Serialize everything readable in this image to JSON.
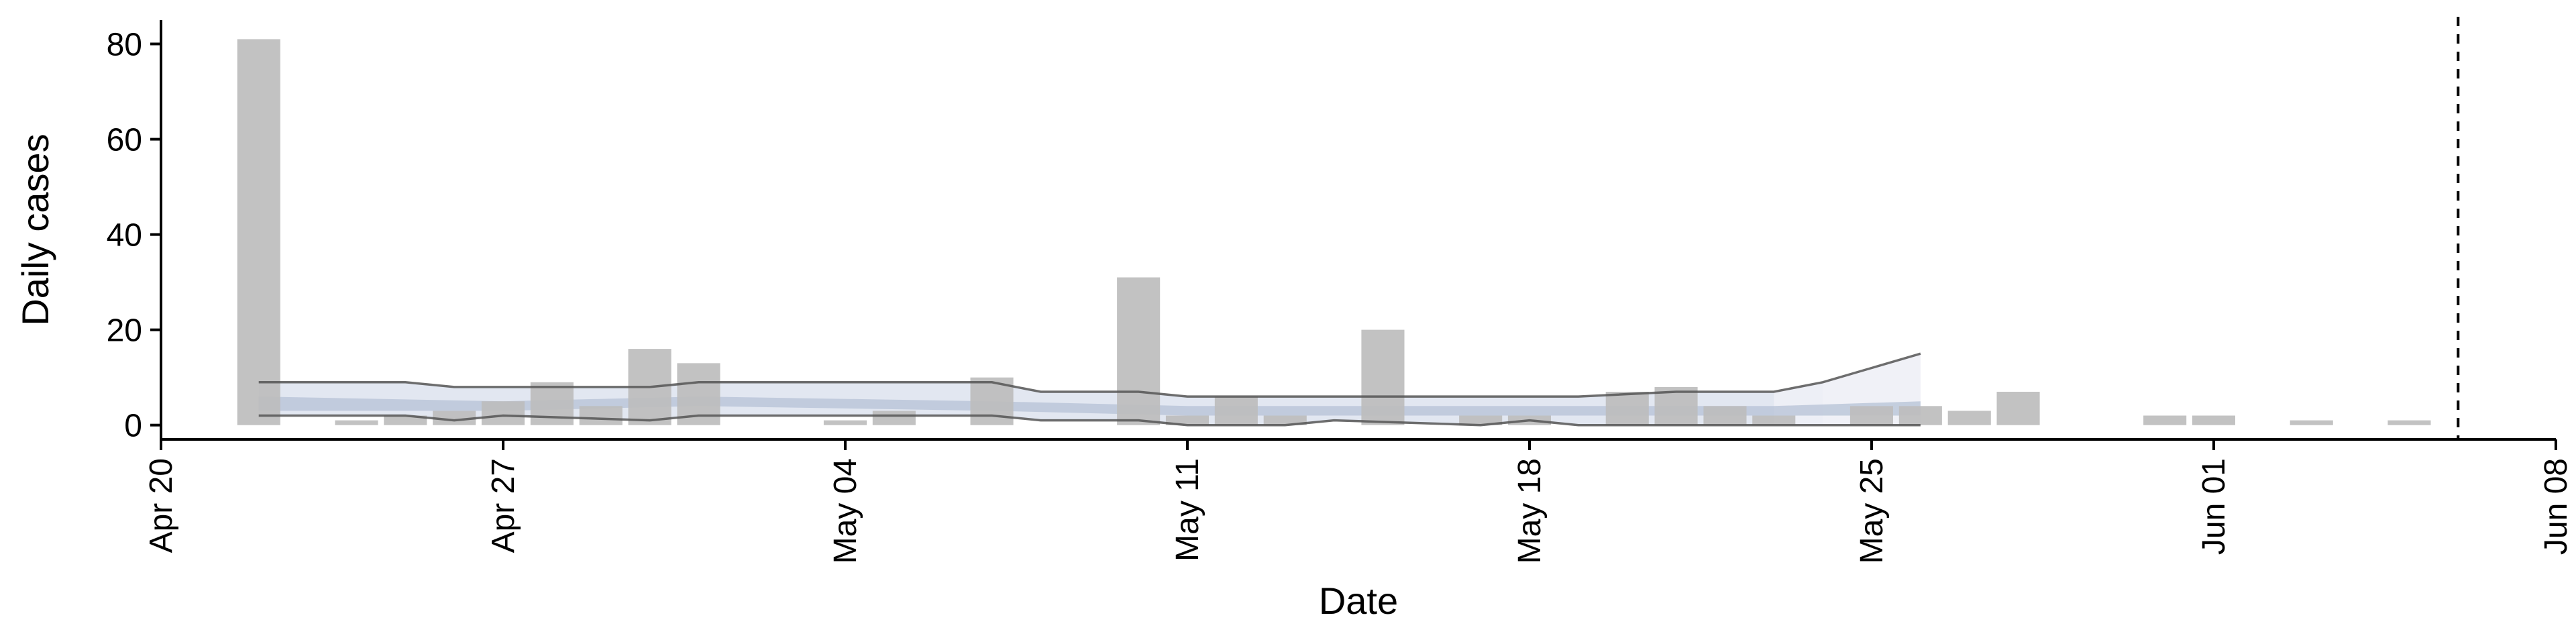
{
  "chart_data": {
    "type": "bar",
    "xlabel": "Date",
    "ylabel": "Daily cases",
    "x_axis": {
      "type": "date",
      "range": [
        "2020-04-20",
        "2020-06-08"
      ],
      "ticks": [
        {
          "date": "2020-04-20",
          "label": "Apr 20"
        },
        {
          "date": "2020-04-27",
          "label": "Apr 27"
        },
        {
          "date": "2020-05-04",
          "label": "May 04"
        },
        {
          "date": "2020-05-11",
          "label": "May 11"
        },
        {
          "date": "2020-05-18",
          "label": "May 18"
        },
        {
          "date": "2020-05-25",
          "label": "May 25"
        },
        {
          "date": "2020-06-01",
          "label": "Jun 01"
        },
        {
          "date": "2020-06-08",
          "label": "Jun 08"
        }
      ],
      "tick_label_rotation": "vertical"
    },
    "y_axis": {
      "range": [
        -3,
        85
      ],
      "ticks": [
        0,
        20,
        40,
        60,
        80
      ]
    },
    "grid": false,
    "legend": "none",
    "bars": {
      "color": "#bdbdbd",
      "points": [
        {
          "date": "2020-04-22",
          "value": 81
        },
        {
          "date": "2020-04-24",
          "value": 1
        },
        {
          "date": "2020-04-25",
          "value": 2
        },
        {
          "date": "2020-04-26",
          "value": 3
        },
        {
          "date": "2020-04-27",
          "value": 5
        },
        {
          "date": "2020-04-28",
          "value": 9
        },
        {
          "date": "2020-04-29",
          "value": 4
        },
        {
          "date": "2020-04-30",
          "value": 16
        },
        {
          "date": "2020-05-01",
          "value": 13
        },
        {
          "date": "2020-05-04",
          "value": 1
        },
        {
          "date": "2020-05-05",
          "value": 3
        },
        {
          "date": "2020-05-07",
          "value": 10
        },
        {
          "date": "2020-05-10",
          "value": 31
        },
        {
          "date": "2020-05-11",
          "value": 2
        },
        {
          "date": "2020-05-12",
          "value": 6
        },
        {
          "date": "2020-05-13",
          "value": 2
        },
        {
          "date": "2020-05-15",
          "value": 20
        },
        {
          "date": "2020-05-17",
          "value": 2
        },
        {
          "date": "2020-05-18",
          "value": 2
        },
        {
          "date": "2020-05-20",
          "value": 7
        },
        {
          "date": "2020-05-21",
          "value": 8
        },
        {
          "date": "2020-05-22",
          "value": 4
        },
        {
          "date": "2020-05-23",
          "value": 2
        },
        {
          "date": "2020-05-25",
          "value": 4
        },
        {
          "date": "2020-05-26",
          "value": 4
        },
        {
          "date": "2020-05-27",
          "value": 3
        },
        {
          "date": "2020-05-28",
          "value": 7
        },
        {
          "date": "2020-05-31",
          "value": 2
        },
        {
          "date": "2020-06-01",
          "value": 2
        },
        {
          "date": "2020-06-03",
          "value": 1
        },
        {
          "date": "2020-06-05",
          "value": 1
        }
      ]
    },
    "estimate_band": {
      "outer_color": "#dde3ef",
      "inner_color": "#b5c1d6",
      "future_color": "#eef0f6",
      "outer": [
        {
          "date": "2020-04-22",
          "low": 2,
          "high": 9
        },
        {
          "date": "2020-04-25",
          "low": 2,
          "high": 9
        },
        {
          "date": "2020-04-26",
          "low": 1,
          "high": 8
        },
        {
          "date": "2020-04-27",
          "low": 2,
          "high": 8
        },
        {
          "date": "2020-04-30",
          "low": 1,
          "high": 8
        },
        {
          "date": "2020-05-01",
          "low": 2,
          "high": 9
        },
        {
          "date": "2020-05-07",
          "low": 2,
          "high": 9
        },
        {
          "date": "2020-05-08",
          "low": 1,
          "high": 7
        },
        {
          "date": "2020-05-10",
          "low": 1,
          "high": 7
        },
        {
          "date": "2020-05-11",
          "low": 0,
          "high": 6
        },
        {
          "date": "2020-05-13",
          "low": 0,
          "high": 6
        },
        {
          "date": "2020-05-14",
          "low": 1,
          "high": 6
        },
        {
          "date": "2020-05-17",
          "low": 0,
          "high": 6
        },
        {
          "date": "2020-05-18",
          "low": 1,
          "high": 6
        },
        {
          "date": "2020-05-19",
          "low": 0,
          "high": 6
        },
        {
          "date": "2020-05-21",
          "low": 0,
          "high": 7
        },
        {
          "date": "2020-05-23",
          "low": 0,
          "high": 7
        },
        {
          "date": "2020-05-24",
          "low": 0,
          "high": 9
        },
        {
          "date": "2020-05-25",
          "low": 0,
          "high": 12
        },
        {
          "date": "2020-05-26",
          "low": 0,
          "high": 15
        }
      ],
      "inner": [
        {
          "date": "2020-04-22",
          "low": 3,
          "high": 6
        },
        {
          "date": "2020-04-27",
          "low": 3,
          "high": 5
        },
        {
          "date": "2020-05-01",
          "low": 4,
          "high": 6
        },
        {
          "date": "2020-05-07",
          "low": 3,
          "high": 5
        },
        {
          "date": "2020-05-11",
          "low": 2,
          "high": 4
        },
        {
          "date": "2020-05-18",
          "low": 2,
          "high": 4
        },
        {
          "date": "2020-05-23",
          "low": 2,
          "high": 4
        },
        {
          "date": "2020-05-26",
          "low": 2,
          "high": 5
        }
      ],
      "future_from": "2020-05-24",
      "line_color": "#555555"
    },
    "reference_line": {
      "date": "2020-06-06",
      "style": "dashed",
      "color": "#000000"
    }
  }
}
